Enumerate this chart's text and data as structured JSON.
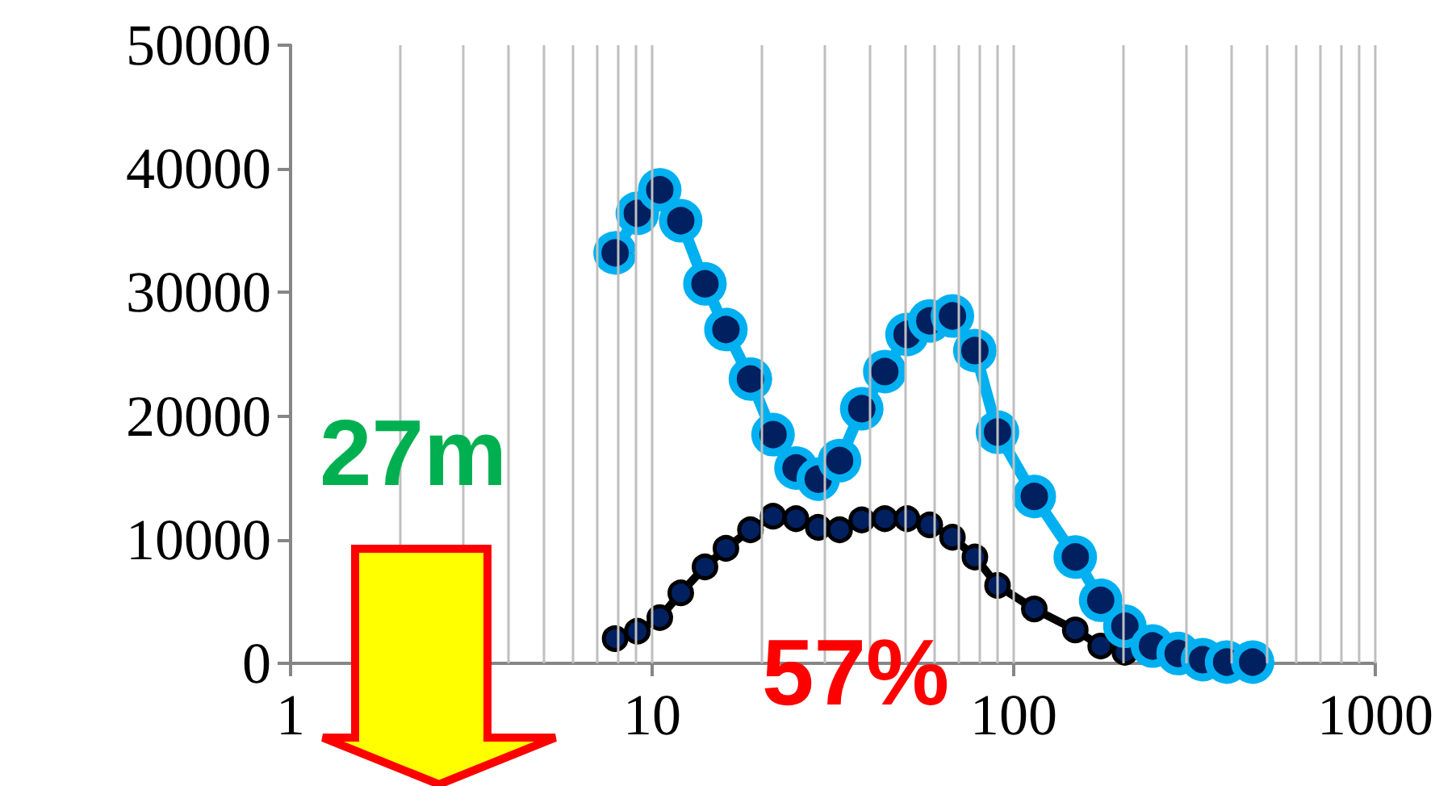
{
  "chart_data": {
    "type": "line",
    "x": [
      7.9,
      9.1,
      10.5,
      12.0,
      14.0,
      16.0,
      18.7,
      21.6,
      25.0,
      28.8,
      33.0,
      38.0,
      44.0,
      50.7,
      58.6,
      67.7,
      78.1,
      90.2,
      114,
      148,
      174,
      203,
      242,
      285,
      333,
      388,
      458
    ],
    "series": [
      {
        "color": "#00b0f0",
        "values": [
          33200,
          36400,
          38300,
          35800,
          30700,
          27000,
          23000,
          18500,
          15800,
          14900,
          16400,
          20600,
          23600,
          26600,
          27700,
          28100,
          25300,
          18700,
          13500,
          8600,
          5100,
          3000,
          1400,
          800,
          300,
          100,
          100
        ]
      },
      {
        "color": "#000000",
        "values": [
          2000,
          2600,
          3700,
          5700,
          7800,
          9300,
          10800,
          11900,
          11700,
          11000,
          10800,
          11600,
          11700,
          11700,
          11200,
          10200,
          8600,
          6300,
          4400,
          2700,
          1400,
          900,
          null,
          null,
          null,
          null,
          null
        ]
      }
    ],
    "log": "x",
    "xlim": [
      1,
      1000
    ],
    "xticks": [
      1,
      {
        "value": 2,
        "label": null
      },
      {
        "value": 3,
        "label": null
      },
      {
        "value": 4,
        "label": null
      },
      {
        "value": 5,
        "label": null
      },
      {
        "value": 6,
        "label": null
      },
      {
        "value": 7,
        "label": null
      },
      {
        "value": 8,
        "label": null
      },
      {
        "value": 9,
        "label": null
      },
      10,
      {
        "value": 20,
        "label": null
      },
      {
        "value": 30,
        "label": null
      },
      {
        "value": 40,
        "label": null
      },
      {
        "value": 50,
        "label": null
      },
      {
        "value": 60,
        "label": null
      },
      {
        "value": 70,
        "label": null
      },
      {
        "value": 80,
        "label": null
      },
      {
        "value": 90,
        "label": null
      },
      100,
      {
        "value": 200,
        "label": null
      },
      {
        "value": 300,
        "label": null
      },
      {
        "value": 400,
        "label": null
      },
      {
        "value": 500,
        "label": null
      },
      {
        "value": 600,
        "label": null
      },
      {
        "value": 700,
        "label": null
      },
      {
        "value": 800,
        "label": null
      },
      {
        "value": 900,
        "label": null
      },
      1000
    ],
    "ylim": [
      0,
      50000
    ],
    "yticks": [
      0,
      10000,
      20000,
      30000,
      40000,
      50000
    ],
    "grid": "x",
    "marker": "circle",
    "annotations": [
      "27m",
      "57%"
    ]
  }
}
